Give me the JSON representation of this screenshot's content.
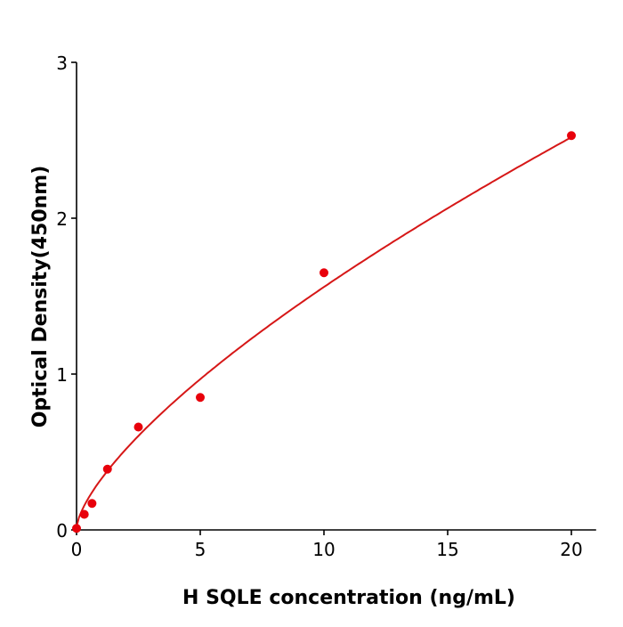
{
  "chart_data": {
    "type": "scatter",
    "title": "",
    "xlabel": "H  SQLE concentration (ng/mL)",
    "ylabel": "Optical Density(450nm)",
    "xlim": [
      0,
      21
    ],
    "ylim": [
      0,
      3
    ],
    "xticks": [
      0,
      5,
      10,
      15,
      20
    ],
    "yticks": [
      0,
      1,
      2,
      3
    ],
    "grid": false,
    "legend": "none",
    "colors": {
      "points": "#e8000b",
      "curve": "#d61717",
      "axis": "#000000"
    },
    "series": [
      {
        "x": [
          0,
          0.3125,
          0.625,
          1.25,
          2.5,
          5,
          10,
          20
        ],
        "y": [
          0.01,
          0.1,
          0.17,
          0.39,
          0.66,
          0.85,
          1.65,
          2.53
        ],
        "fit_curve": true
      }
    ]
  }
}
